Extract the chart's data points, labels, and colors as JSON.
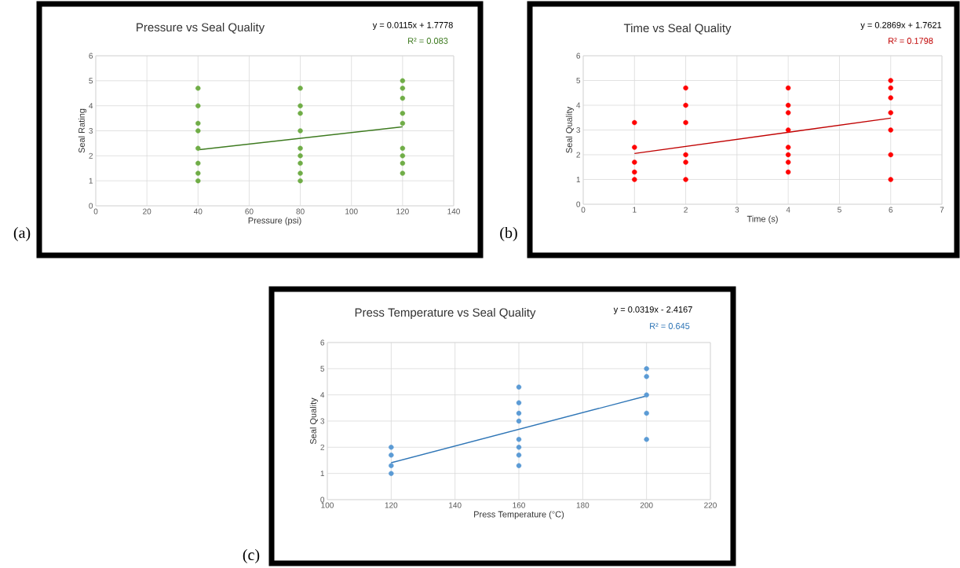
{
  "chart_data": [
    {
      "type": "scatter",
      "title": "Pressure vs Seal Quality",
      "xlabel": "Pressure (psi)",
      "ylabel": "Seal Rating",
      "xlim": [
        0,
        140
      ],
      "ylim": [
        0,
        6
      ],
      "xticks": [
        0,
        20,
        40,
        60,
        80,
        100,
        120,
        140
      ],
      "yticks": [
        0,
        1,
        2,
        3,
        4,
        5,
        6
      ],
      "grid": true,
      "marker": "circle",
      "annotations": [
        "y = 0.0115x + 1.7778",
        "R² = 0.083",
        "(a)"
      ],
      "series": [
        {
          "type": "scatter",
          "color": "#70ad47",
          "x": [
            40,
            40,
            40,
            40,
            40,
            40,
            40,
            40,
            80,
            80,
            80,
            80,
            80,
            80,
            80,
            80,
            80,
            120,
            120,
            120,
            120,
            120,
            120,
            120,
            120,
            120
          ],
          "values": [
            4.7,
            4.0,
            3.3,
            3.0,
            2.3,
            1.7,
            1.3,
            1.0,
            4.7,
            4.0,
            3.7,
            3.0,
            2.3,
            2.0,
            1.7,
            1.3,
            1.0,
            5.0,
            4.7,
            4.3,
            3.7,
            3.3,
            2.3,
            2.0,
            1.7,
            1.3
          ]
        },
        {
          "type": "line",
          "marker": "none",
          "color": "#3d7a1f",
          "x": [
            40,
            120
          ],
          "values": [
            2.24,
            3.16
          ]
        }
      ]
    },
    {
      "type": "scatter",
      "title": "Time vs Seal Quality",
      "xlabel": "Time (s)",
      "ylabel": "Seal Quality",
      "xlim": [
        0,
        7
      ],
      "ylim": [
        0,
        6
      ],
      "xticks": [
        0,
        1,
        2,
        3,
        4,
        5,
        6,
        7
      ],
      "yticks": [
        0,
        1,
        2,
        3,
        4,
        5,
        6
      ],
      "grid": true,
      "marker": "circle",
      "annotations": [
        "y = 0.2869x + 1.7621",
        "R² = 0.1798",
        "(b)"
      ],
      "series": [
        {
          "type": "scatter",
          "color": "#ff0000",
          "x": [
            1,
            1,
            1,
            1,
            1,
            2,
            2,
            2,
            2,
            2,
            2,
            4,
            4,
            4,
            4,
            4,
            4,
            4,
            4,
            6,
            6,
            6,
            6,
            6,
            6,
            6
          ],
          "values": [
            3.3,
            2.3,
            1.7,
            1.3,
            1.0,
            4.7,
            4.0,
            3.3,
            2.0,
            1.7,
            1.0,
            4.7,
            4.0,
            3.7,
            3.0,
            2.3,
            2.0,
            1.7,
            1.3,
            5.0,
            4.7,
            4.3,
            3.7,
            3.0,
            2.0,
            1.0
          ]
        },
        {
          "type": "line",
          "marker": "none",
          "color": "#c00000",
          "x": [
            1,
            6
          ],
          "values": [
            2.05,
            3.48
          ]
        }
      ]
    },
    {
      "type": "scatter",
      "title": "Press Temperature vs Seal Quality",
      "xlabel": "Press Temperature (°C)",
      "ylabel": "Seal Quality",
      "xlim": [
        100,
        220
      ],
      "ylim": [
        0,
        6
      ],
      "xticks": [
        100,
        120,
        140,
        160,
        180,
        200,
        220
      ],
      "yticks": [
        0,
        1,
        2,
        3,
        4,
        5,
        6
      ],
      "grid": true,
      "marker": "circle",
      "annotations": [
        "y = 0.0319x - 2.4167",
        "R² = 0.645",
        "(c)"
      ],
      "series": [
        {
          "type": "scatter",
          "color": "#5b9bd5",
          "x": [
            120,
            120,
            120,
            120,
            160,
            160,
            160,
            160,
            160,
            160,
            160,
            160,
            200,
            200,
            200,
            200,
            200
          ],
          "values": [
            2.0,
            1.7,
            1.3,
            1.0,
            4.3,
            3.7,
            3.3,
            3.0,
            2.3,
            2.0,
            1.7,
            1.3,
            5.0,
            4.7,
            4.0,
            3.3,
            2.3
          ]
        },
        {
          "type": "line",
          "marker": "none",
          "color": "#2e75b6",
          "x": [
            120,
            200
          ],
          "values": [
            1.41,
            3.96
          ]
        }
      ]
    }
  ]
}
